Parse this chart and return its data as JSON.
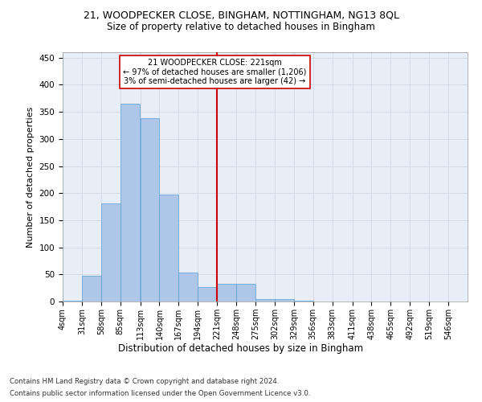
{
  "title1": "21, WOODPECKER CLOSE, BINGHAM, NOTTINGHAM, NG13 8QL",
  "title2": "Size of property relative to detached houses in Bingham",
  "xlabel": "Distribution of detached houses by size in Bingham",
  "ylabel": "Number of detached properties",
  "bin_labels": [
    "4sqm",
    "31sqm",
    "58sqm",
    "85sqm",
    "113sqm",
    "140sqm",
    "167sqm",
    "194sqm",
    "221sqm",
    "248sqm",
    "275sqm",
    "302sqm",
    "329sqm",
    "356sqm",
    "383sqm",
    "411sqm",
    "438sqm",
    "465sqm",
    "492sqm",
    "519sqm",
    "546sqm"
  ],
  "bin_edges": [
    4,
    31,
    58,
    85,
    113,
    140,
    167,
    194,
    221,
    248,
    275,
    302,
    329,
    356,
    383,
    411,
    438,
    465,
    492,
    519,
    546
  ],
  "bar_heights": [
    2,
    47,
    181,
    365,
    338,
    198,
    54,
    26,
    32,
    32,
    5,
    5,
    2,
    0,
    0,
    0,
    0,
    0,
    0,
    0
  ],
  "bar_color": "#aec6e8",
  "bar_edge_color": "#5a9fd4",
  "vline_x": 221,
  "vline_color": "#cc0000",
  "annotation_line1": "21 WOODPECKER CLOSE: 221sqm",
  "annotation_line2": "← 97% of detached houses are smaller (1,206)",
  "annotation_line3": "3% of semi-detached houses are larger (42) →",
  "annotation_box_color": "#ffffff",
  "annotation_box_edge": "#cc0000",
  "grid_color": "#d0d8e8",
  "background_color": "#e8eef8",
  "footer_line1": "Contains HM Land Registry data © Crown copyright and database right 2024.",
  "footer_line2": "Contains public sector information licensed under the Open Government Licence v3.0.",
  "ylim": [
    0,
    460
  ],
  "yticks": [
    0,
    50,
    100,
    150,
    200,
    250,
    300,
    350,
    400,
    450
  ]
}
